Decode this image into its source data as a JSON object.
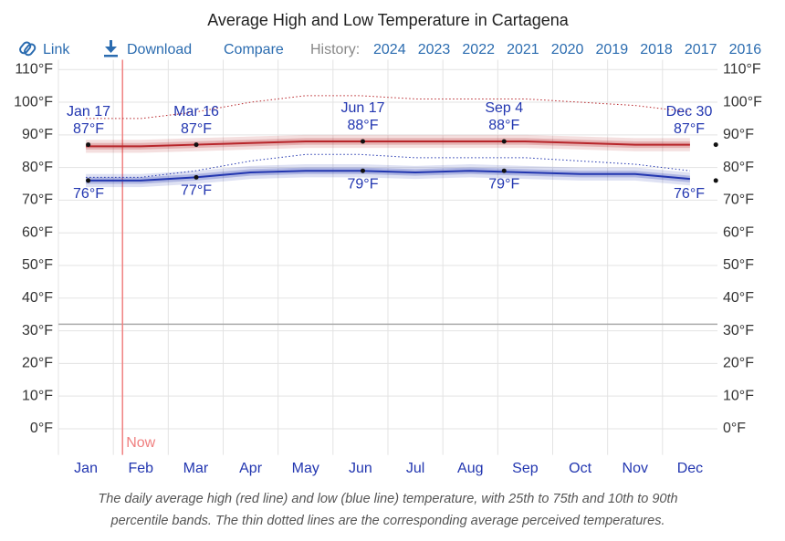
{
  "chart_data": {
    "type": "line",
    "title": "Average High and Low Temperature in Cartagena",
    "toolbar": {
      "link": "Link",
      "download": "Download",
      "compare": "Compare",
      "history": "History:",
      "years": [
        "2024",
        "2023",
        "2022",
        "2021",
        "2020",
        "2019",
        "2018",
        "2017",
        "2016"
      ]
    },
    "categories": [
      "Jan",
      "Feb",
      "Mar",
      "Apr",
      "May",
      "Jun",
      "Jul",
      "Aug",
      "Sep",
      "Oct",
      "Nov",
      "Dec"
    ],
    "series": [
      {
        "color": "#b8262b",
        "values": [
          86.5,
          86.5,
          87,
          87.5,
          88,
          88,
          88,
          88,
          88,
          87.5,
          87,
          87
        ],
        "p25": [
          85.5,
          85.5,
          86,
          86.5,
          87,
          87,
          87,
          87,
          87,
          86.5,
          86,
          86
        ],
        "p75": [
          87.5,
          87.5,
          88,
          88.5,
          89,
          89,
          89,
          89,
          89,
          88.5,
          88,
          88
        ],
        "p10": [
          84.5,
          84.5,
          85,
          85.5,
          86,
          86,
          86,
          86,
          86,
          85.5,
          85,
          85
        ],
        "p90": [
          88.5,
          88.5,
          89,
          89.5,
          90,
          90,
          90,
          90,
          90,
          89.5,
          89,
          89
        ],
        "perceived": [
          95,
          95,
          97,
          100,
          102,
          102,
          101,
          101,
          101,
          100,
          99,
          97
        ]
      },
      {
        "color": "#2236b0",
        "values": [
          76,
          76,
          77,
          78.5,
          79,
          79,
          78.5,
          79,
          78.5,
          78,
          78,
          76.5
        ],
        "p25": [
          75,
          75,
          76,
          77.5,
          78,
          78,
          77.5,
          78,
          77.5,
          77,
          77,
          75.5
        ],
        "p75": [
          77,
          77,
          78,
          79.5,
          80,
          80,
          79.5,
          80,
          79.5,
          79,
          79,
          77.5
        ],
        "p10": [
          74,
          74,
          75,
          76.5,
          77,
          77,
          76.5,
          77,
          76.5,
          76,
          76,
          74.5
        ],
        "p90": [
          78,
          78,
          79,
          80.5,
          81,
          81,
          80.5,
          81,
          80.5,
          80,
          80,
          78.5
        ],
        "perceived": [
          77,
          77,
          79,
          82,
          84,
          84,
          83,
          83,
          83,
          82,
          81,
          79
        ]
      }
    ],
    "annotations": [
      {
        "date": "Jan 17",
        "high": 87,
        "high_label": "87°F",
        "low": 76,
        "low_label": "76°F"
      },
      {
        "date": "Mar 16",
        "high": 87,
        "high_label": "87°F",
        "low": 77,
        "low_label": "77°F"
      },
      {
        "date": "Jun 17",
        "high": 88,
        "high_label": "88°F",
        "low": 79,
        "low_label": "79°F"
      },
      {
        "date": "Sep 4",
        "high": 88,
        "high_label": "88°F",
        "low": 79,
        "low_label": "79°F"
      },
      {
        "date": "Dec 30",
        "high": 87,
        "high_label": "87°F",
        "low": 76,
        "low_label": "76°F"
      }
    ],
    "now": {
      "label": "Now",
      "day_of_year": 36
    },
    "freezing_line": 32,
    "ylim": [
      -8,
      113
    ],
    "yticks": [
      {
        "value": 0,
        "label": "0°F"
      },
      {
        "value": 10,
        "label": "10°F"
      },
      {
        "value": 20,
        "label": "20°F"
      },
      {
        "value": 30,
        "label": "30°F"
      },
      {
        "value": 40,
        "label": "40°F"
      },
      {
        "value": 50,
        "label": "50°F"
      },
      {
        "value": 60,
        "label": "60°F"
      },
      {
        "value": 70,
        "label": "70°F"
      },
      {
        "value": 80,
        "label": "80°F"
      },
      {
        "value": 90,
        "label": "90°F"
      },
      {
        "value": 100,
        "label": "100°F"
      },
      {
        "value": 110,
        "label": "110°F"
      }
    ],
    "y2lim": [
      -8,
      113
    ],
    "y2ticks": [
      {
        "value": 0,
        "label": "0°F"
      },
      {
        "value": 10,
        "label": "10°F"
      },
      {
        "value": 20,
        "label": "20°F"
      },
      {
        "value": 30,
        "label": "30°F"
      },
      {
        "value": 40,
        "label": "40°F"
      },
      {
        "value": 50,
        "label": "50°F"
      },
      {
        "value": 60,
        "label": "60°F"
      },
      {
        "value": 70,
        "label": "70°F"
      },
      {
        "value": 80,
        "label": "80°F"
      },
      {
        "value": 90,
        "label": "90°F"
      },
      {
        "value": 100,
        "label": "100°F"
      },
      {
        "value": 110,
        "label": "110°F"
      }
    ],
    "grid": true,
    "caption": [
      "The daily average high (red line) and low (blue line) temperature, with 25th to 75th and 10th to 90th",
      "percentile bands. The thin dotted lines are the corresponding average perceived temperatures."
    ]
  }
}
